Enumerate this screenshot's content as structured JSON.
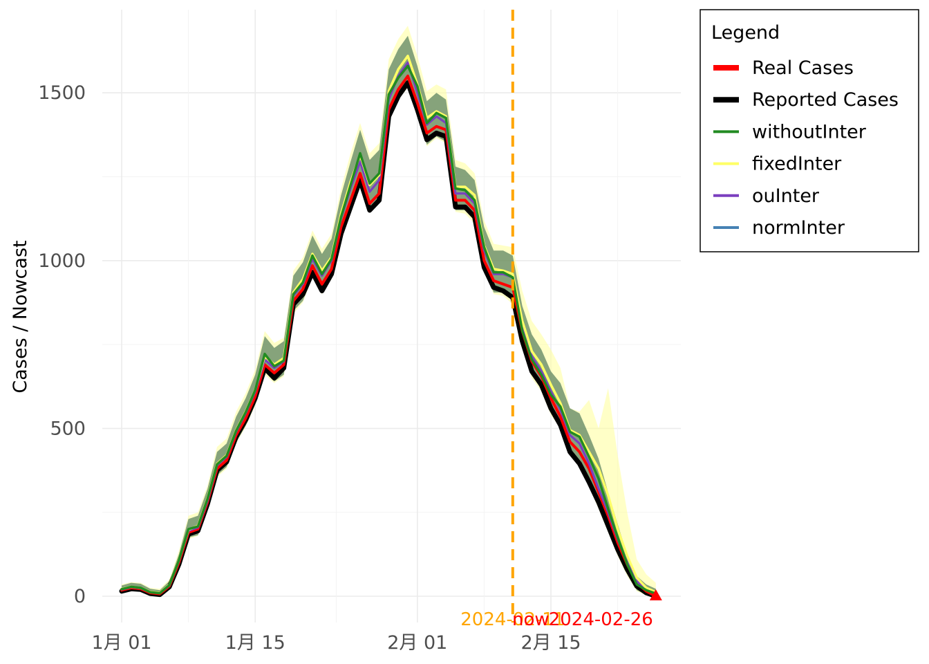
{
  "chart_data": {
    "type": "line",
    "ylabel": "Cases / Nowcast",
    "xlabel": "",
    "x_ticks": [
      "1月 01",
      "1月 15",
      "2月 01",
      "2月 15"
    ],
    "x_tick_days": [
      0,
      14,
      31,
      45
    ],
    "x_range_days": [
      -3,
      58
    ],
    "y_ticks": [
      0,
      500,
      1000,
      1500
    ],
    "ylim": [
      -80,
      1720
    ],
    "grid": true,
    "legend_position": "right",
    "legend": {
      "title": "Legend",
      "items": [
        {
          "label": "Real Cases",
          "color": "#ff0000"
        },
        {
          "label": "Reported Cases",
          "color": "#000000"
        },
        {
          "label": "withoutInter",
          "color": "#228b22"
        },
        {
          "label": "fixedInter",
          "color": "#ffff66"
        },
        {
          "label": "ouInter",
          "color": "#7b3fbf"
        },
        {
          "label": "normInter",
          "color": "#4682b4"
        }
      ]
    },
    "annotations": {
      "vline_day": 41,
      "vline_color": "#ffa500",
      "now_date": "2024-02-11",
      "now_label": "now",
      "end_date": "2024-02-26"
    },
    "days": [
      0,
      1,
      2,
      3,
      4,
      5,
      6,
      7,
      8,
      9,
      10,
      11,
      12,
      13,
      14,
      15,
      16,
      17,
      18,
      19,
      20,
      21,
      22,
      23,
      24,
      25,
      26,
      27,
      28,
      29,
      30,
      31,
      32,
      33,
      34,
      35,
      36,
      37,
      38,
      39,
      40,
      41,
      42,
      43,
      44,
      45,
      46,
      47,
      48,
      49,
      50,
      51,
      52,
      53,
      54,
      55,
      56
    ],
    "series": [
      {
        "name": "Reported Cases",
        "values": [
          15,
          22,
          20,
          8,
          5,
          28,
          95,
          185,
          195,
          275,
          375,
          400,
          475,
          525,
          590,
          680,
          650,
          680,
          870,
          900,
          965,
          910,
          960,
          1080,
          1160,
          1240,
          1150,
          1180,
          1430,
          1490,
          1530,
          1450,
          1360,
          1380,
          1370,
          1160,
          1160,
          1130,
          980,
          920,
          910,
          890,
          760,
          670,
          630,
          560,
          510,
          430,
          395,
          340,
          280,
          210,
          140,
          80,
          30,
          10,
          0
        ]
      },
      {
        "name": "Real Cases",
        "values": [
          18,
          25,
          22,
          10,
          7,
          30,
          100,
          190,
          200,
          280,
          380,
          405,
          480,
          530,
          595,
          690,
          665,
          690,
          880,
          915,
          985,
          930,
          975,
          1100,
          1180,
          1260,
          1170,
          1200,
          1450,
          1510,
          1550,
          1470,
          1380,
          1400,
          1390,
          1180,
          1180,
          1150,
          1000,
          940,
          930,
          920,
          790,
          700,
          655,
          590,
          535,
          460,
          430,
          380,
          310,
          240,
          160,
          95,
          40,
          15,
          0
        ]
      },
      {
        "name": "normInter",
        "values": [
          20,
          27,
          24,
          12,
          9,
          32,
          105,
          195,
          205,
          285,
          390,
          415,
          490,
          545,
          610,
          705,
          680,
          700,
          895,
          930,
          1005,
          955,
          1000,
          1125,
          1215,
          1295,
          1205,
          1240,
          1480,
          1550,
          1590,
          1500,
          1405,
          1430,
          1410,
          1200,
          1200,
          1170,
          1030,
          960,
          960,
          950,
          800,
          715,
          670,
          610,
          555,
          480,
          455,
          395,
          320,
          250,
          170,
          100,
          45,
          20,
          8
        ]
      },
      {
        "name": "ouInter",
        "values": [
          20,
          27,
          24,
          12,
          9,
          32,
          105,
          195,
          205,
          285,
          390,
          415,
          490,
          545,
          610,
          705,
          680,
          700,
          895,
          930,
          1005,
          955,
          1000,
          1125,
          1215,
          1295,
          1205,
          1240,
          1480,
          1550,
          1590,
          1500,
          1405,
          1430,
          1410,
          1200,
          1200,
          1170,
          1030,
          960,
          960,
          950,
          800,
          715,
          670,
          610,
          555,
          480,
          455,
          395,
          320,
          250,
          170,
          100,
          45,
          20,
          8
        ]
      },
      {
        "name": "fixedInter",
        "values": [
          22,
          28,
          25,
          13,
          10,
          34,
          108,
          198,
          210,
          292,
          395,
          420,
          495,
          550,
          615,
          715,
          690,
          710,
          905,
          945,
          1020,
          970,
          1010,
          1140,
          1235,
          1315,
          1225,
          1255,
          1505,
          1570,
          1610,
          1525,
          1425,
          1445,
          1430,
          1220,
          1220,
          1195,
          1045,
          975,
          970,
          960,
          820,
          730,
          690,
          630,
          575,
          495,
          480,
          430,
          380,
          300,
          200,
          120,
          55,
          25,
          12
        ]
      },
      {
        "name": "withoutInter",
        "values": [
          21,
          28,
          25,
          12,
          9,
          33,
          107,
          200,
          208,
          290,
          393,
          418,
          493,
          548,
          614,
          722,
          685,
          702,
          900,
          935,
          1015,
          960,
          1005,
          1130,
          1225,
          1320,
          1230,
          1260,
          1495,
          1545,
          1580,
          1520,
          1410,
          1440,
          1425,
          1215,
          1210,
          1180,
          1040,
          965,
          965,
          950,
          790,
          705,
          660,
          600,
          565,
          490,
          475,
          415,
          350,
          260,
          175,
          95,
          35,
          18,
          8
        ]
      }
    ],
    "bands": [
      {
        "name": "withoutInter",
        "lower": [
          12,
          18,
          16,
          5,
          2,
          22,
          85,
          175,
          182,
          262,
          360,
          385,
          458,
          508,
          572,
          668,
          640,
          660,
          850,
          880,
          955,
          905,
          950,
          1070,
          1160,
          1245,
          1160,
          1185,
          1420,
          1485,
          1520,
          1445,
          1345,
          1370,
          1355,
          1150,
          1150,
          1120,
          975,
          905,
          905,
          880,
          745,
          660,
          615,
          550,
          505,
          425,
          395,
          335,
          275,
          205,
          135,
          70,
          18,
          5,
          0
        ],
        "upper": [
          32,
          40,
          37,
          22,
          18,
          45,
          125,
          230,
          240,
          320,
          430,
          455,
          535,
          590,
          660,
          775,
          740,
          760,
          955,
          995,
          1075,
          1020,
          1065,
          1195,
          1295,
          1390,
          1300,
          1330,
          1570,
          1630,
          1670,
          1580,
          1475,
          1500,
          1480,
          1280,
          1270,
          1240,
          1100,
          1030,
          1030,
          1015,
          865,
          780,
          735,
          670,
          635,
          560,
          545,
          480,
          410,
          310,
          215,
          125,
          60,
          35,
          22
        ]
      },
      {
        "name": "fixedInter",
        "lower": [
          10,
          16,
          14,
          4,
          1,
          20,
          82,
          170,
          180,
          258,
          355,
          380,
          455,
          505,
          568,
          660,
          635,
          655,
          842,
          875,
          950,
          900,
          945,
          1065,
          1155,
          1240,
          1155,
          1180,
          1415,
          1480,
          1515,
          1440,
          1340,
          1365,
          1350,
          1145,
          1140,
          1110,
          970,
          900,
          895,
          870,
          740,
          650,
          610,
          540,
          500,
          420,
          385,
          325,
          260,
          190,
          120,
          60,
          15,
          3,
          0
        ],
        "upper": [
          35,
          42,
          40,
          25,
          22,
          50,
          135,
          240,
          250,
          330,
          445,
          470,
          550,
          605,
          675,
          790,
          755,
          770,
          970,
          1010,
          1090,
          1035,
          1080,
          1215,
          1320,
          1410,
          1320,
          1350,
          1600,
          1660,
          1700,
          1610,
          1505,
          1525,
          1510,
          1300,
          1290,
          1260,
          1120,
          1050,
          1045,
          1040,
          910,
          820,
          780,
          735,
          680,
          560,
          550,
          585,
          500,
          620,
          420,
          250,
          110,
          65,
          40
        ]
      }
    ]
  }
}
